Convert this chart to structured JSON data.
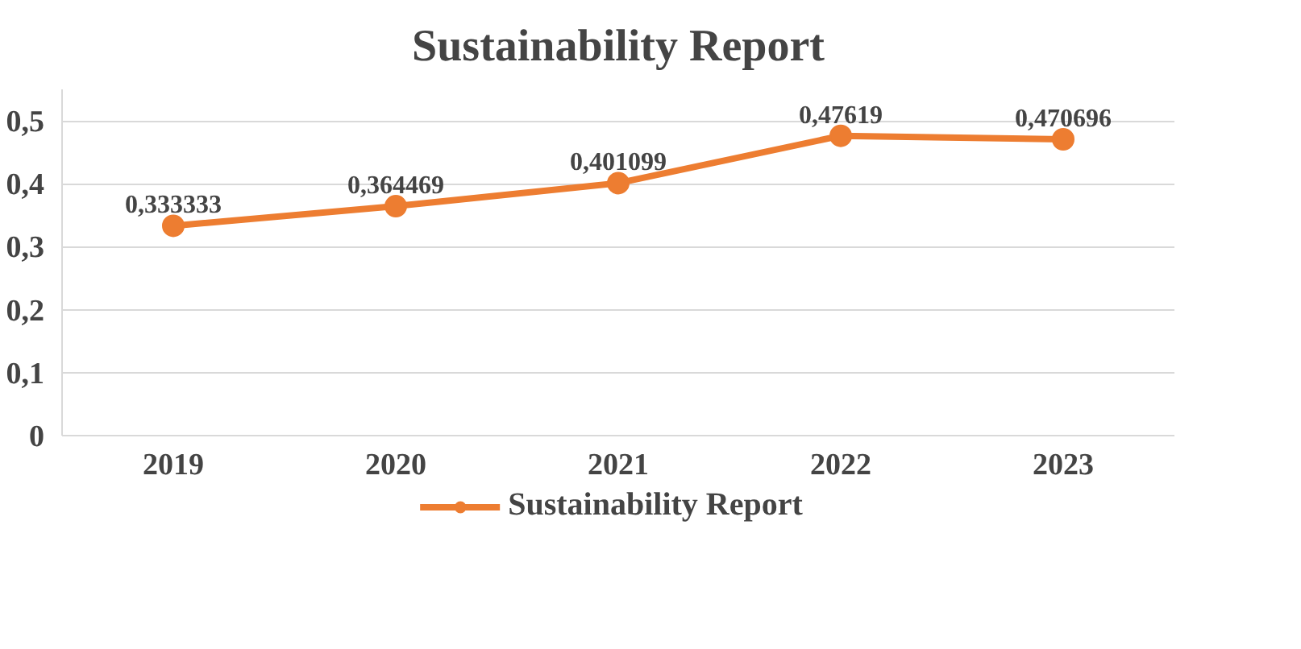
{
  "chart_data": {
    "type": "line",
    "title": "Sustainability Report",
    "categories": [
      "2019",
      "2020",
      "2021",
      "2022",
      "2023"
    ],
    "series": [
      {
        "name": "Sustainability Report",
        "color": "#ed7d31",
        "values": [
          0.333333,
          0.364469,
          0.401099,
          0.47619,
          0.470696
        ],
        "value_labels": [
          "0,333333",
          "0,364469",
          "0,401099",
          "0,47619",
          "0,470696"
        ]
      }
    ],
    "ylim": [
      0,
      0.55
    ],
    "yticks": [
      {
        "value": 0,
        "label": "0"
      },
      {
        "value": 0.1,
        "label": "0,1"
      },
      {
        "value": 0.2,
        "label": "0,2"
      },
      {
        "value": 0.3,
        "label": "0,3"
      },
      {
        "value": 0.4,
        "label": "0,4"
      },
      {
        "value": 0.5,
        "label": "0,5"
      }
    ],
    "grid": "y",
    "legend": "bottom",
    "marker": "circle",
    "line_style": "solid"
  }
}
